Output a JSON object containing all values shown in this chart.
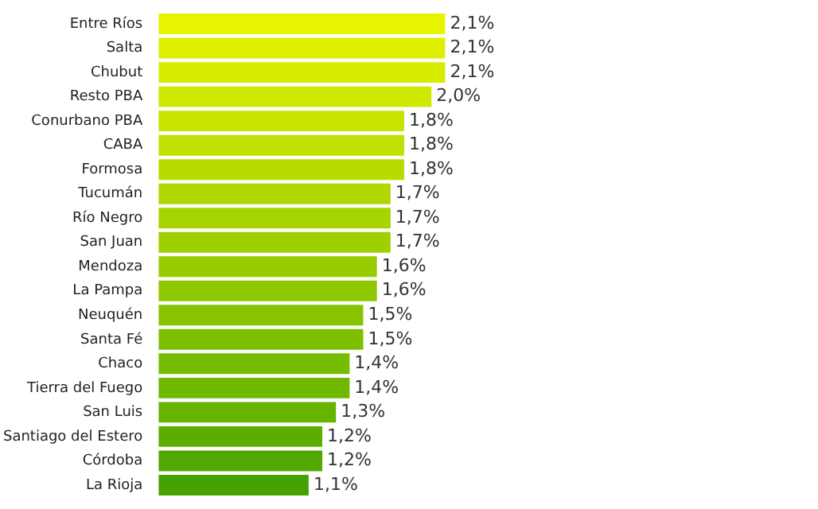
{
  "chart_data": {
    "type": "bar",
    "orientation": "horizontal",
    "categories": [
      "Entre Ríos",
      "Salta",
      "Chubut",
      "Resto PBA",
      "Conurbano PBA",
      "CABA",
      "Formosa",
      "Tucumán",
      "Río Negro",
      "San Juan",
      "Mendoza",
      "La Pampa",
      "Neuquén",
      "Santa Fé",
      "Chaco",
      "Tierra del Fuego",
      "San Luis",
      "Santiago del Estero",
      "Córdoba",
      "La Rioja"
    ],
    "values": [
      2.1,
      2.1,
      2.1,
      2.0,
      1.8,
      1.8,
      1.8,
      1.7,
      1.7,
      1.7,
      1.6,
      1.6,
      1.5,
      1.5,
      1.4,
      1.4,
      1.3,
      1.2,
      1.2,
      1.1
    ],
    "value_labels": [
      "2,1%",
      "2,1%",
      "2,1%",
      "2,0%",
      "1,8%",
      "1,8%",
      "1,8%",
      "1,7%",
      "1,7%",
      "1,7%",
      "1,6%",
      "1,6%",
      "1,5%",
      "1,5%",
      "1,4%",
      "1,4%",
      "1,3%",
      "1,2%",
      "1,2%",
      "1,1%"
    ],
    "colors": [
      "#e6f400",
      "#def000",
      "#d8ec00",
      "#cfe800",
      "#c6e400",
      "#bfe000",
      "#b6dc00",
      "#aed800",
      "#a6d400",
      "#9ed000",
      "#96cc00",
      "#8ec800",
      "#86c400",
      "#7ec000",
      "#76bc00",
      "#6eb800",
      "#66b400",
      "#5aae00",
      "#50a800",
      "#46a200"
    ],
    "tick_labels": "y",
    "legend": false
  }
}
